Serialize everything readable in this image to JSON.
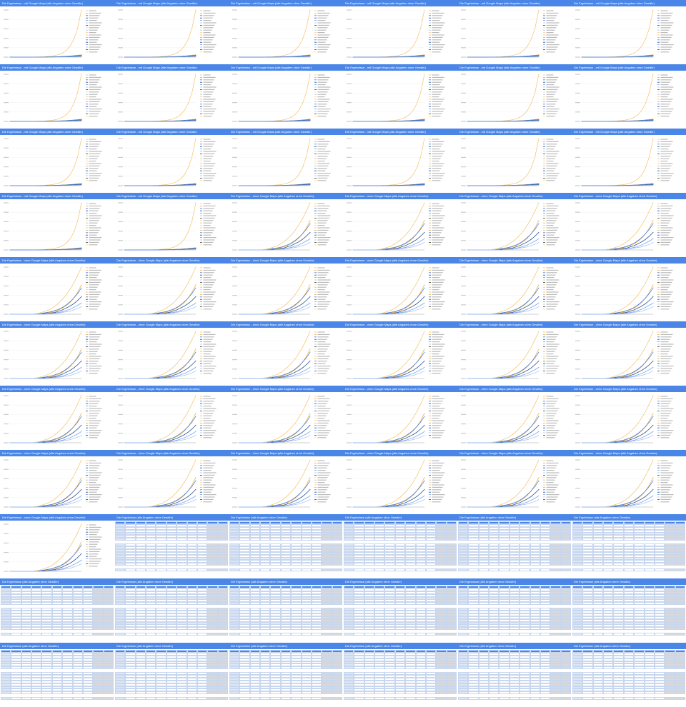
{
  "titles": {
    "chart_with_maps": "Die Ergebnisse - mit Google Maps (alle Angaben ohne Gewähr)",
    "chart_without_maps": "Die Ergebnisse - ohne Google Maps (alle Angaben ohne Gewähr)",
    "table": "Die Ergebnisse (alle Angaben ohne Gewähr)"
  },
  "grid": {
    "columns": 6,
    "rows": 11,
    "layout": [
      "A",
      "A",
      "A",
      "A",
      "A",
      "A",
      "A",
      "A",
      "A",
      "A",
      "A",
      "A",
      "A",
      "A",
      "A",
      "A",
      "A",
      "A",
      "A",
      "A",
      "B",
      "B",
      "B",
      "B",
      "B",
      "B",
      "B",
      "B",
      "B",
      "B",
      "B",
      "B",
      "B",
      "B",
      "B",
      "B",
      "B",
      "B",
      "B",
      "B",
      "B",
      "B",
      "B",
      "B",
      "B",
      "B",
      "B",
      "B",
      "B",
      "T",
      "T",
      "T",
      "T",
      "T",
      "T",
      "T",
      "T",
      "T",
      "T",
      "T",
      "T",
      "T",
      "T",
      "T",
      "T",
      "T"
    ]
  },
  "colors": {
    "header_bg": "#4a86e8",
    "header_text": "#ffffff",
    "table_header": "#4a86e8",
    "table_name": "#dce6f4",
    "table_gray": "#d9d9d9",
    "series_palette": [
      "#f6c26b",
      "#f2a93b",
      "#3c78d8",
      "#1c4587",
      "#6d9eeb",
      "#a4c2f4",
      "#434343",
      "#ffd966",
      "#9fc5e8",
      "#f9cb9c"
    ]
  },
  "chart_data": [
    {
      "id": "A",
      "type": "line",
      "title": "Die Ergebnisse - mit Google Maps (alle Angaben ohne Gewähr)",
      "x": [
        1,
        2,
        3,
        4,
        5,
        6,
        7,
        8,
        9,
        10,
        11,
        12,
        13,
        14,
        15,
        16,
        17,
        18,
        19,
        20
      ],
      "series": [
        {
          "values": [
            0,
            0,
            0,
            0,
            0,
            0,
            1,
            1,
            2,
            3,
            5,
            8,
            13,
            21,
            34,
            55,
            89,
            144,
            233,
            377
          ]
        },
        {
          "values": [
            0,
            0,
            0,
            0,
            0,
            0,
            0,
            0,
            0,
            1,
            1,
            2,
            3,
            4,
            5,
            7,
            9,
            12,
            15,
            19
          ]
        },
        {
          "values": [
            0,
            0,
            0,
            0,
            0,
            0,
            0,
            0,
            1,
            1,
            2,
            2,
            3,
            4,
            5,
            6,
            8,
            10,
            12,
            15
          ]
        },
        {
          "values": [
            0,
            0,
            0,
            0,
            0,
            0,
            0,
            0,
            0,
            0,
            1,
            1,
            2,
            2,
            3,
            4,
            5,
            6,
            8,
            10
          ]
        },
        {
          "values": [
            0,
            0,
            0,
            0,
            0,
            0,
            0,
            0,
            0,
            0,
            0,
            1,
            1,
            1,
            2,
            2,
            3,
            4,
            5,
            6
          ]
        }
      ],
      "legend_position": "right",
      "grid": true
    },
    {
      "id": "B",
      "type": "line",
      "title": "Die Ergebnisse - ohne Google Maps (alle Angaben ohne Gewähr)",
      "x": [
        1,
        2,
        3,
        4,
        5,
        6,
        7,
        8,
        9,
        10,
        11,
        12,
        13,
        14,
        15,
        16,
        17,
        18,
        19,
        20
      ],
      "series": [
        {
          "values": [
            0,
            0,
            0,
            0,
            0,
            0,
            0,
            1,
            2,
            4,
            6,
            9,
            13,
            18,
            24,
            31,
            40,
            50,
            62,
            75
          ]
        },
        {
          "values": [
            0,
            0,
            0,
            0,
            0,
            0,
            0,
            0,
            0,
            1,
            2,
            3,
            5,
            7,
            10,
            14,
            19,
            26,
            35,
            47
          ]
        },
        {
          "values": [
            0,
            0,
            0,
            0,
            0,
            0,
            0,
            0,
            1,
            2,
            3,
            4,
            6,
            8,
            11,
            15,
            20,
            26,
            33,
            42
          ]
        },
        {
          "values": [
            0,
            0,
            0,
            0,
            0,
            0,
            0,
            0,
            0,
            1,
            1,
            2,
            3,
            5,
            7,
            10,
            13,
            17,
            22,
            28
          ]
        },
        {
          "values": [
            0,
            0,
            0,
            0,
            0,
            0,
            0,
            0,
            0,
            0,
            1,
            1,
            2,
            3,
            4,
            6,
            8,
            11,
            14,
            18
          ]
        },
        {
          "values": [
            0,
            0,
            0,
            0,
            0,
            0,
            0,
            0,
            0,
            0,
            0,
            1,
            1,
            2,
            3,
            4,
            5,
            7,
            9,
            12
          ]
        }
      ],
      "legend_position": "right",
      "grid": true
    }
  ]
}
